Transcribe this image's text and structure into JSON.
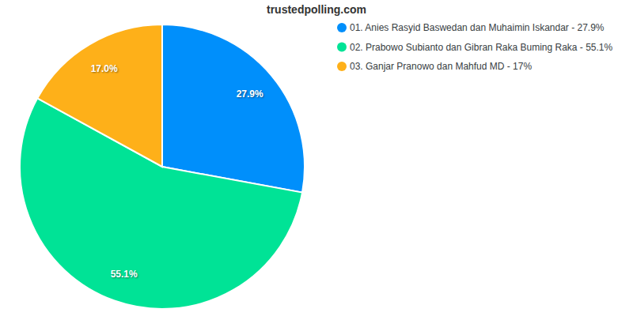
{
  "chart_data": {
    "type": "pie",
    "title": "trustedpolling.com",
    "categories": [
      "01. Anies Rasyid Baswedan dan Muhaimin Iskandar - 27.9%",
      "02. Prabowo Subianto dan Gibran Raka Buming Raka - 55.1%",
      "03. Ganjar Pranowo dan Mahfud MD - 17%"
    ],
    "values": [
      27.9,
      55.1,
      17
    ],
    "value_labels": [
      "27.9%",
      "55.1%",
      "17.0%"
    ],
    "colors": [
      "#008ffb",
      "#00e396",
      "#feb019"
    ],
    "data_labels": true,
    "legend": "right"
  }
}
